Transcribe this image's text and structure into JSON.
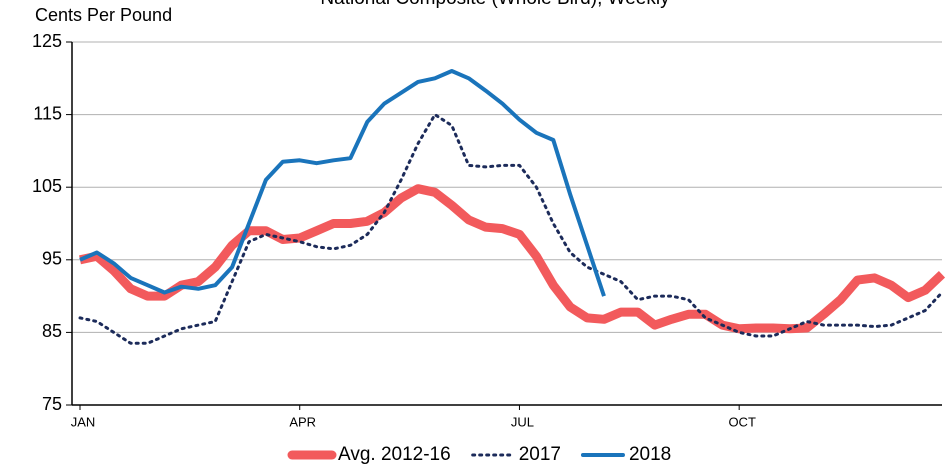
{
  "chart_data": {
    "type": "line",
    "title": "National Composite (Whole Bird), Weekly",
    "y_label": "Cents Per Pound",
    "categories": [
      "JAN",
      null,
      null,
      null,
      null,
      null,
      null,
      null,
      null,
      null,
      null,
      null,
      null,
      "APR",
      null,
      null,
      null,
      null,
      null,
      null,
      null,
      null,
      null,
      null,
      null,
      null,
      "JUL",
      null,
      null,
      null,
      null,
      null,
      null,
      null,
      null,
      null,
      null,
      null,
      null,
      "OCT",
      null,
      null,
      null,
      null,
      null,
      null,
      null,
      null,
      null,
      null,
      null,
      null
    ],
    "series": [
      {
        "name": "Avg. 2012-16",
        "color": "#f25a5c",
        "line_style": "solid",
        "line_width": 9,
        "values": [
          95,
          95.5,
          93.5,
          91,
          90,
          90,
          91.5,
          92,
          94,
          97,
          99,
          99,
          97.8,
          98,
          99,
          100,
          100,
          100.3,
          101.5,
          103.5,
          104.8,
          104.3,
          102.5,
          100.5,
          99.5,
          99.3,
          98.5,
          95.5,
          91.5,
          88.5,
          87,
          86.8,
          87.8,
          87.8,
          86,
          86.8,
          87.5,
          87.5,
          86,
          85.5,
          85.6,
          85.6,
          85.5,
          85.6,
          87.5,
          89.5,
          92.2,
          92.5,
          91.5,
          89.8,
          90.8,
          93
        ]
      },
      {
        "name": "2017",
        "color": "#1c2b5a",
        "line_style": "dotted",
        "line_width": 3,
        "values": [
          87,
          86.5,
          85,
          83.5,
          83.5,
          84.5,
          85.5,
          86,
          86.5,
          92,
          97.5,
          98.5,
          98,
          97.5,
          96.8,
          96.5,
          97,
          98.5,
          101.5,
          106,
          111,
          115,
          113.5,
          108,
          107.8,
          108,
          108,
          105,
          100,
          96,
          94,
          93,
          92,
          89.5,
          90,
          90,
          89.5,
          87,
          86,
          85,
          84.5,
          84.5,
          85.5,
          86.5,
          86,
          86,
          86,
          85.8,
          86,
          87,
          88,
          90.5
        ]
      },
      {
        "name": "2018",
        "color": "#1a74bb",
        "line_style": "solid",
        "line_width": 4,
        "values": [
          95,
          96,
          94.5,
          92.5,
          91.5,
          90.5,
          91.3,
          91,
          91.5,
          94,
          100,
          106,
          108.5,
          108.7,
          108.3,
          108.7,
          109,
          114,
          116.5,
          118,
          119.5,
          120,
          121,
          120,
          118.3,
          116.5,
          114.3,
          112.5,
          111.5,
          104,
          97,
          90,
          null,
          null,
          null,
          null,
          null,
          null,
          null,
          null,
          null,
          null,
          null,
          null,
          null,
          null,
          null,
          null,
          null,
          null,
          null,
          null
        ]
      }
    ],
    "ylim": [
      75,
      125
    ],
    "yticks": [
      75,
      85,
      95,
      105,
      115,
      125
    ],
    "grid": true,
    "legend": "bottom"
  }
}
